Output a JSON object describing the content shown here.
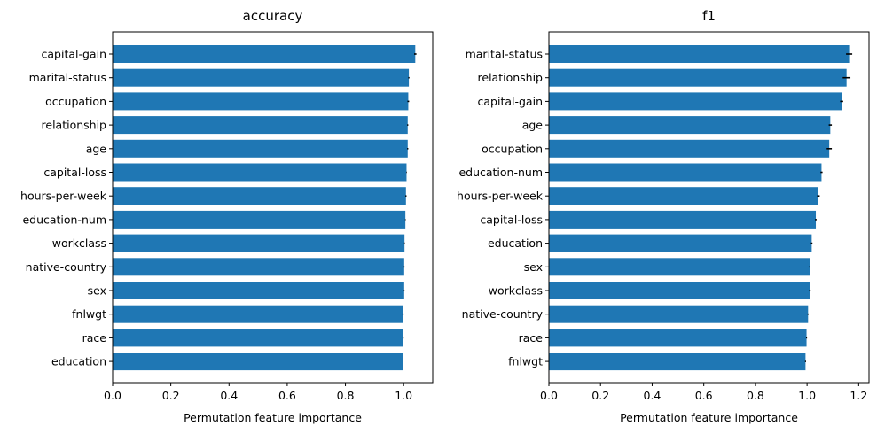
{
  "colors": {
    "bar": "#1f77b4",
    "errorbar": "#000000",
    "axis": "#000000"
  },
  "chart_data": [
    {
      "type": "bar",
      "orientation": "horizontal",
      "title": "accuracy",
      "xlabel": "Permutation feature importance",
      "ylabel": "",
      "xlim": [
        0.0,
        1.1
      ],
      "xticks": [
        "0.0",
        "0.2",
        "0.4",
        "0.6",
        "0.8",
        "1.0"
      ],
      "xtick_values": [
        0.0,
        0.2,
        0.4,
        0.6,
        0.8,
        1.0
      ],
      "categories": [
        "capital-gain",
        "marital-status",
        "occupation",
        "relationship",
        "age",
        "capital-loss",
        "hours-per-week",
        "education-num",
        "workclass",
        "native-country",
        "sex",
        "fnlwgt",
        "race",
        "education"
      ],
      "values": [
        1.04,
        1.018,
        1.016,
        1.014,
        1.014,
        1.01,
        1.008,
        1.006,
        1.003,
        1.002,
        1.002,
        0.998,
        0.999,
        0.998
      ],
      "errors": [
        0.004,
        0.002,
        0.003,
        0.002,
        0.002,
        0.001,
        0.002,
        0.001,
        0.001,
        0.001,
        0.001,
        0.002,
        0.001,
        0.001
      ],
      "grid": false,
      "legend": "none"
    },
    {
      "type": "bar",
      "orientation": "horizontal",
      "title": "f1",
      "xlabel": "Permutation feature importance",
      "ylabel": "",
      "xlim": [
        0.0,
        1.24
      ],
      "xticks": [
        "0.0",
        "0.2",
        "0.4",
        "0.6",
        "0.8",
        "1.0",
        "1.2"
      ],
      "xtick_values": [
        0.0,
        0.2,
        0.4,
        0.6,
        0.8,
        1.0,
        1.2
      ],
      "categories": [
        "marital-status",
        "relationship",
        "capital-gain",
        "age",
        "occupation",
        "education-num",
        "hours-per-week",
        "capital-loss",
        "education",
        "sex",
        "workclass",
        "native-country",
        "race",
        "fnlwgt"
      ],
      "values": [
        1.163,
        1.153,
        1.134,
        1.09,
        1.086,
        1.056,
        1.044,
        1.034,
        1.018,
        1.01,
        1.011,
        1.004,
        0.998,
        0.994
      ],
      "errors": [
        0.012,
        0.015,
        0.006,
        0.006,
        0.01,
        0.004,
        0.005,
        0.003,
        0.003,
        0.002,
        0.003,
        0.002,
        0.002,
        0.002
      ],
      "grid": false,
      "legend": "none"
    }
  ]
}
